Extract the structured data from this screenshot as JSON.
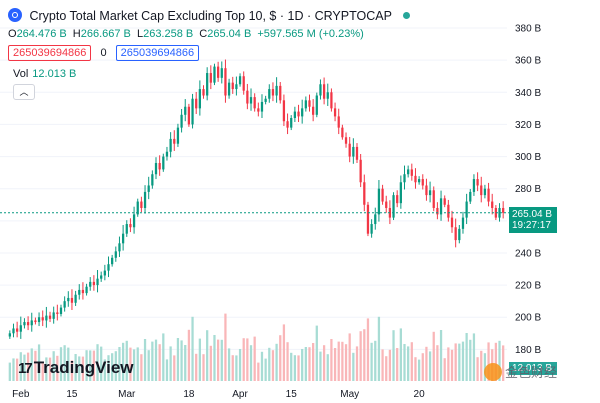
{
  "header": {
    "title": "Crypto Total Market Cap Excluding Top 10, $ · 1D · CRYPTOCAP",
    "ohlc": [
      {
        "key": "O",
        "value": "264.476 B"
      },
      {
        "key": "H",
        "value": "266.667 B"
      },
      {
        "key": "L",
        "value": "263.258 B"
      },
      {
        "key": "C",
        "value": "265.04 B"
      }
    ],
    "change": "+597.565 M (+0.23%)",
    "box_left": "265039694866",
    "box_mid": "0",
    "box_right": "265039694866"
  },
  "volume": {
    "label": "Vol",
    "value": "12.013 B"
  },
  "collapse_glyph": "︿",
  "logo_text": "TradingView",
  "logo_mark": "17",
  "price_tag": {
    "value": "265.04 B",
    "time": "19:27:17"
  },
  "volume_tag": "12.013 B",
  "watermark": "金色财经",
  "colors": {
    "up": "#089981",
    "down": "#f23645",
    "vol_up": "#a7dcd4",
    "vol_down": "#f9b6b8",
    "grid": "#f0f3fa",
    "axis_text": "#131722"
  },
  "icons": [
    "cryptocap-logo-icon",
    "live-dot-icon",
    "chevron-up-icon",
    "tradingview-logo-icon",
    "coin-icon"
  ],
  "chart_data": {
    "type": "candlestick",
    "title": "Crypto Total Market Cap Excluding Top 10, $ · 1D · CRYPTOCAP",
    "y_unit": "B",
    "ylim": [
      174,
      385
    ],
    "y_ticks": [
      {
        "value": 180,
        "label": "180 B"
      },
      {
        "value": 200,
        "label": "200 B"
      },
      {
        "value": 220,
        "label": "220 B"
      },
      {
        "value": 240,
        "label": "240 B"
      },
      {
        "value": 260,
        "label": "260 B"
      },
      {
        "value": 280,
        "label": "280 B"
      },
      {
        "value": 300,
        "label": "300 B"
      },
      {
        "value": 320,
        "label": "320 B"
      },
      {
        "value": 340,
        "label": "340 B"
      },
      {
        "value": 360,
        "label": "360 B"
      },
      {
        "value": 380,
        "label": "380 B"
      }
    ],
    "x_ticks": [
      {
        "label": "Feb",
        "day": 3
      },
      {
        "label": "15",
        "day": 17
      },
      {
        "label": "Mar",
        "day": 32
      },
      {
        "label": "18",
        "day": 49
      },
      {
        "label": "Apr",
        "day": 63
      },
      {
        "label": "15",
        "day": 77
      },
      {
        "label": "May",
        "day": 93
      },
      {
        "label": "20",
        "day": 112
      }
    ],
    "current_price": 265.04,
    "closes": [
      190,
      193,
      191,
      195,
      197,
      195,
      198,
      197,
      200,
      198,
      201,
      199,
      203,
      202,
      206,
      210,
      212,
      209,
      214,
      217,
      215,
      219,
      222,
      220,
      224,
      226,
      229,
      233,
      237,
      241,
      246,
      252,
      258,
      256,
      264,
      272,
      268,
      278,
      282,
      289,
      296,
      292,
      300,
      303,
      311,
      308,
      318,
      326,
      331,
      320,
      336,
      330,
      342,
      338,
      352,
      346,
      356,
      349,
      355,
      338,
      346,
      342,
      345,
      350,
      341,
      333,
      337,
      330,
      328,
      334,
      336,
      342,
      338,
      344,
      335,
      322,
      318,
      324,
      328,
      325,
      330,
      335,
      331,
      326,
      338,
      345,
      336,
      340,
      330,
      325,
      318,
      312,
      308,
      300,
      306,
      298,
      284,
      270,
      252,
      258,
      264,
      280,
      272,
      268,
      262,
      276,
      271,
      284,
      289,
      292,
      288,
      284,
      286,
      282,
      276,
      279,
      268,
      264,
      274,
      270,
      262,
      256,
      248,
      255,
      262,
      272,
      278,
      286,
      282,
      276,
      280,
      272,
      268,
      262,
      268,
      265
    ]
  }
}
